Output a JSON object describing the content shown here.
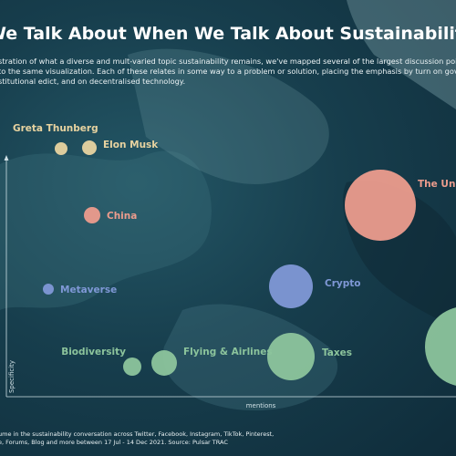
{
  "title": "We Talk About When We Talk About Sustainability",
  "subtitle": [
    "stration of what a diverse and mult-varied topic sustainability remains, we've mapped several of the largest discussion poin",
    "to the same visualization.  Each of these relates in some way to a problem or solution, placing the emphasis by turn on gove",
    "stitutional edict, and on decentralised technology."
  ],
  "footnote": [
    "ume in the sustainability conversation across Twitter, Facebook, Instagram, TikTok, Pinterest,",
    "e, Forums, Blog and more between  17 Jul - 14 Dec 2021. Source: Pulsar TRAC"
  ],
  "chart_data": {
    "type": "scatter",
    "xlabel": "mentions",
    "ylabel": "Specificity",
    "points": [
      {
        "label": "Greta Thunberg",
        "color": "#e8d3a0"
      },
      {
        "label": "Elon Musk",
        "color": "#e8d3a0"
      },
      {
        "label": "China",
        "color": "#ec9c8d"
      },
      {
        "label": "Metaverse",
        "color": "#7f98d6"
      },
      {
        "label": "Biodiversity",
        "color": "#8cc49c"
      },
      {
        "label": "Flying & Airlines",
        "color": "#8cc49c"
      },
      {
        "label": "Taxes",
        "color": "#8cc49c"
      },
      {
        "label": "Crypto",
        "color": "#7f98d6"
      },
      {
        "label": "The Uni",
        "color": "#ec9c8d"
      },
      {
        "label": "",
        "color": "#8cc49c"
      }
    ]
  }
}
